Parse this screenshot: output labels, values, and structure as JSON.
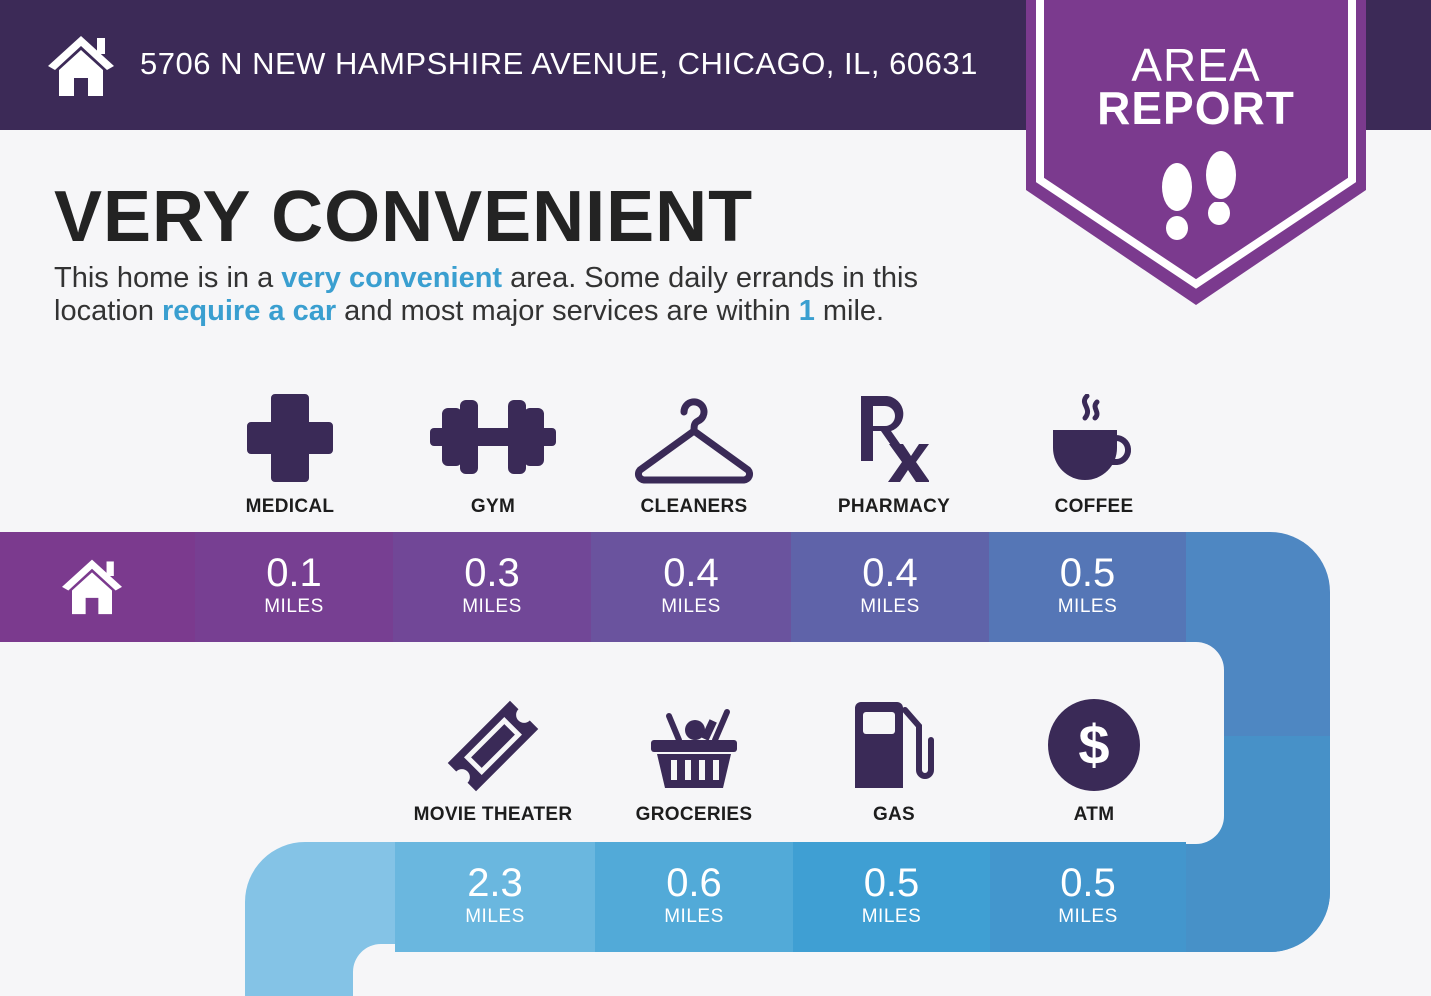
{
  "header": {
    "address": "5706 N NEW HAMPSHIRE AVENUE, CHICAGO, IL, 60631",
    "icon": "home-icon"
  },
  "badge": {
    "line1": "AREA",
    "line2": "REPORT",
    "icon": "footprints-icon"
  },
  "headline": "VERY CONVENIENT",
  "description": {
    "p1": "This home is in a ",
    "hl1": "very convenient",
    "p2": " area. Some daily errands in this location ",
    "hl2": "require a car",
    "p3": " and most major services are within ",
    "hl3": "1",
    "p4": " mile."
  },
  "start_icon": "home-icon",
  "row1": [
    {
      "label": "MEDICAL",
      "value": "0.1",
      "unit": "MILES",
      "icon": "medical-cross-icon"
    },
    {
      "label": "GYM",
      "value": "0.3",
      "unit": "MILES",
      "icon": "dumbbell-icon"
    },
    {
      "label": "CLEANERS",
      "value": "0.4",
      "unit": "MILES",
      "icon": "hanger-icon"
    },
    {
      "label": "PHARMACY",
      "value": "0.4",
      "unit": "MILES",
      "icon": "rx-icon"
    },
    {
      "label": "COFFEE",
      "value": "0.5",
      "unit": "MILES",
      "icon": "coffee-cup-icon"
    }
  ],
  "row2": [
    {
      "label": "MOVIE THEATER",
      "value": "2.3",
      "unit": "MILES",
      "icon": "ticket-icon"
    },
    {
      "label": "GROCERIES",
      "value": "0.6",
      "unit": "MILES",
      "icon": "grocery-basket-icon"
    },
    {
      "label": "GAS",
      "value": "0.5",
      "unit": "MILES",
      "icon": "gas-pump-icon"
    },
    {
      "label": "ATM",
      "value": "0.5",
      "unit": "MILES",
      "icon": "dollar-icon"
    }
  ],
  "colors": {
    "header_bg": "#3c2a57",
    "badge": "#7b3a8e",
    "highlight": "#3a9fd0",
    "icon": "#3a2a57"
  }
}
